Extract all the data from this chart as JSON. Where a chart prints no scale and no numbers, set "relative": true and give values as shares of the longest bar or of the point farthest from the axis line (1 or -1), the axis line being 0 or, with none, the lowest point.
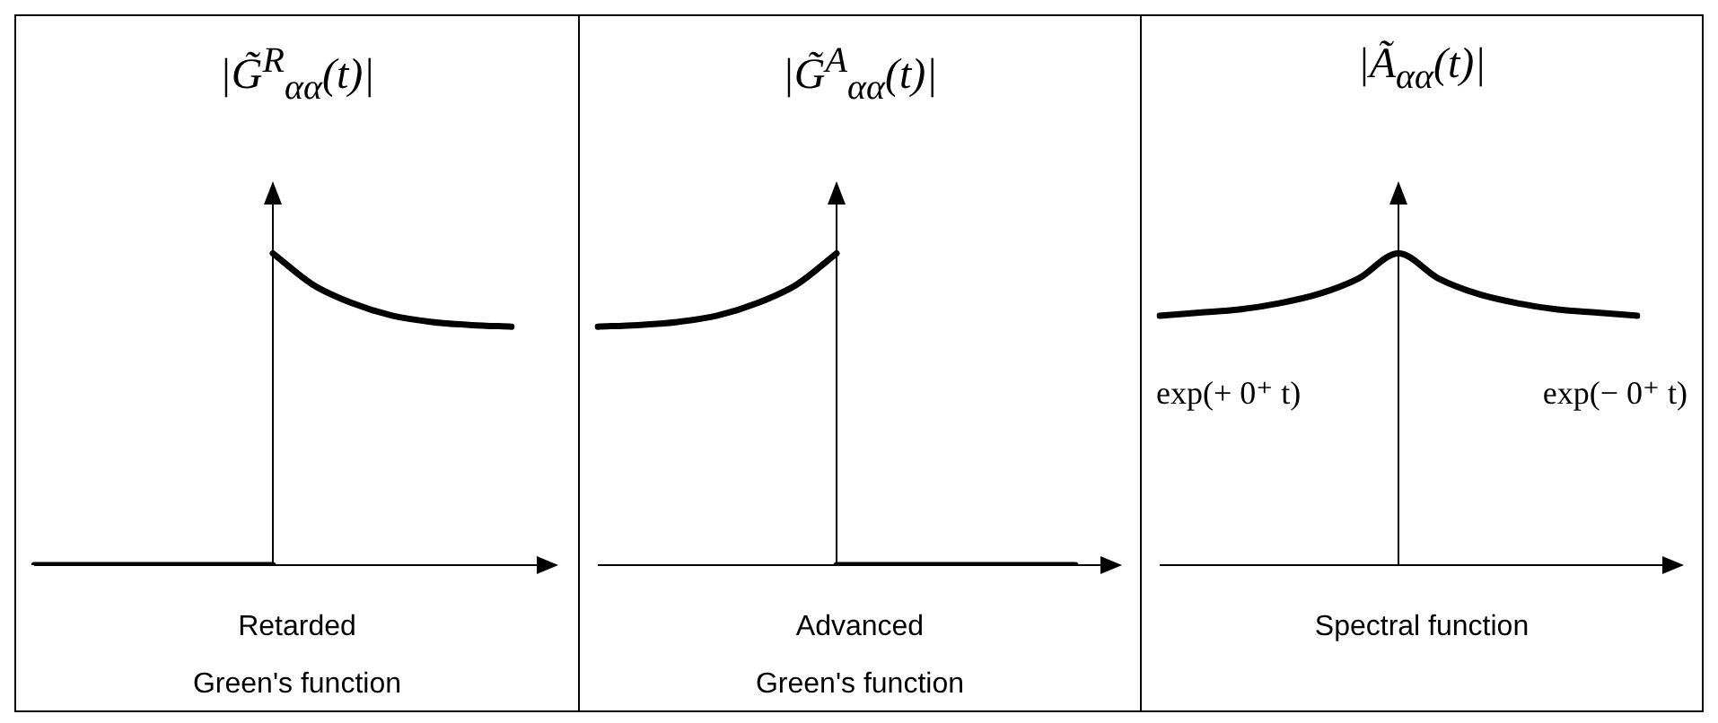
{
  "chart_data": [
    {
      "type": "line",
      "relative": true,
      "title": "Retarded\nGreen's function",
      "ylabel": "|G̃$^{R}$$_{αα}$(t)|",
      "categories": [
        null,
        null,
        null,
        null,
        null,
        null,
        null,
        null,
        null,
        null,
        null,
        null,
        null
      ],
      "series": [
        {
          "color": "#000000",
          "values": [
            0,
            0,
            0,
            0,
            0,
            0,
            0,
            null,
            null,
            null,
            null,
            null,
            null
          ]
        },
        {
          "color": "#000000",
          "values": [
            null,
            null,
            null,
            null,
            null,
            null,
            1,
            0.9,
            0.84,
            0.8,
            0.78,
            0.77,
            0.765
          ]
        }
      ]
    },
    {
      "type": "line",
      "relative": true,
      "title": "Advanced\nGreen's function",
      "ylabel": "|G̃$^{A}$$_{αα}$(t)|",
      "categories": [
        null,
        null,
        null,
        null,
        null,
        null,
        null,
        null,
        null,
        null,
        null,
        null,
        null
      ],
      "series": [
        {
          "color": "#000000",
          "values": [
            0.765,
            0.77,
            0.78,
            0.8,
            0.84,
            0.9,
            1,
            null,
            null,
            null,
            null,
            null,
            null
          ]
        },
        {
          "color": "#000000",
          "values": [
            null,
            null,
            null,
            null,
            null,
            null,
            0,
            0,
            0,
            0,
            0,
            0,
            0
          ]
        }
      ]
    },
    {
      "type": "line",
      "relative": true,
      "title": "Spectral function",
      "ylabel": "|Ã$_{αα}$(t)|",
      "annotations": [
        "exp(+ 0⁺ t)",
        "exp(− 0⁺ t)"
      ],
      "categories": [
        null,
        null,
        null,
        null,
        null,
        null,
        null,
        null,
        null,
        null,
        null,
        null,
        null
      ],
      "series": [
        {
          "color": "#000000",
          "values": [
            0.8,
            0.81,
            0.82,
            0.84,
            0.87,
            0.92,
            1,
            0.92,
            0.87,
            0.84,
            0.82,
            0.81,
            0.8
          ]
        }
      ]
    }
  ]
}
